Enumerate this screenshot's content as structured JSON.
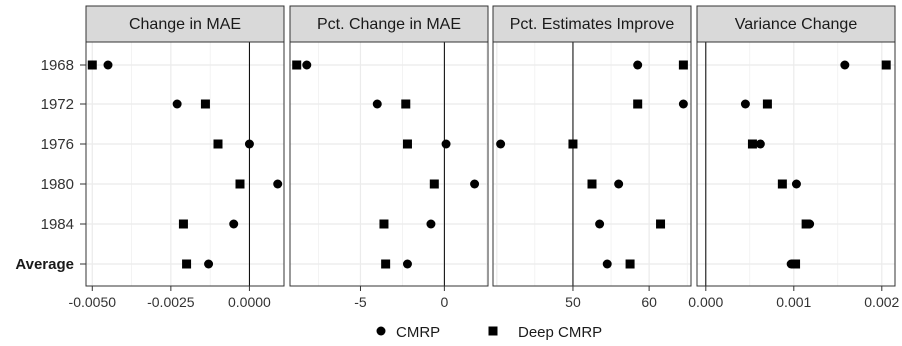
{
  "chart_data": {
    "type": "scatter",
    "categories": [
      "1968",
      "1972",
      "1976",
      "1980",
      "1984",
      "Average"
    ],
    "legend": {
      "placement": "bottom",
      "entries": [
        {
          "label": "CMRP",
          "shape": "circle"
        },
        {
          "label": "Deep CMRP",
          "shape": "square"
        }
      ]
    },
    "colors": {
      "points": "#000000",
      "grid": "#ebebeb",
      "strip": "#d9d9d9",
      "border": "#333333",
      "refline": "#000000"
    },
    "panels": [
      {
        "title": "Change in MAE",
        "xlim": [
          -0.0052,
          0.0011
        ],
        "xticks": [
          -0.005,
          -0.0025,
          0.0,
          0.0025
        ],
        "xtick_labels": [
          "-0.0050",
          "-0.0025",
          "0.0000",
          ""
        ],
        "refline": 0,
        "series": [
          {
            "name": "CMRP",
            "values": [
              -0.0045,
              -0.0023,
              0.0,
              0.0009,
              -0.0005,
              -0.0013
            ]
          },
          {
            "name": "Deep CMRP",
            "values": [
              -0.005,
              -0.0014,
              -0.001,
              -0.0003,
              -0.0021,
              -0.002
            ]
          }
        ]
      },
      {
        "title": "Pct. Change in MAE",
        "xlim": [
          -9.2,
          2.6
        ],
        "xticks": [
          -5,
          0
        ],
        "xtick_labels": [
          "-5",
          "0"
        ],
        "refline": 0,
        "series": [
          {
            "name": "CMRP",
            "values": [
              -8.2,
              -4.0,
              0.1,
              1.8,
              -0.8,
              -2.2
            ]
          },
          {
            "name": "Deep CMRP",
            "values": [
              -8.8,
              -2.3,
              -2.2,
              -0.6,
              -3.6,
              -3.5
            ]
          }
        ]
      },
      {
        "title": "Pct. Estimates Improve",
        "xlim": [
          39.5,
          65.5
        ],
        "xticks": [
          50,
          60
        ],
        "xtick_labels": [
          "50",
          "60"
        ],
        "refline": 50,
        "series": [
          {
            "name": "CMRP",
            "values": [
              58.5,
              64.5,
              40.5,
              56.0,
              53.5,
              54.5
            ]
          },
          {
            "name": "Deep CMRP",
            "values": [
              64.5,
              58.5,
              50.0,
              52.5,
              61.5,
              57.5
            ]
          }
        ]
      },
      {
        "title": "Variance Change",
        "xlim": [
          -0.0001,
          0.00215
        ],
        "xticks": [
          0.0,
          0.001,
          0.002
        ],
        "xtick_labels": [
          "0.000",
          "0.001",
          "0.002"
        ],
        "refline": 0,
        "series": [
          {
            "name": "CMRP",
            "values": [
              0.00158,
              0.00045,
              0.00062,
              0.00103,
              0.00118,
              0.00097
            ]
          },
          {
            "name": "Deep CMRP",
            "values": [
              0.00205,
              0.0007,
              0.00053,
              0.00087,
              0.00114,
              0.00102
            ]
          }
        ]
      }
    ]
  }
}
